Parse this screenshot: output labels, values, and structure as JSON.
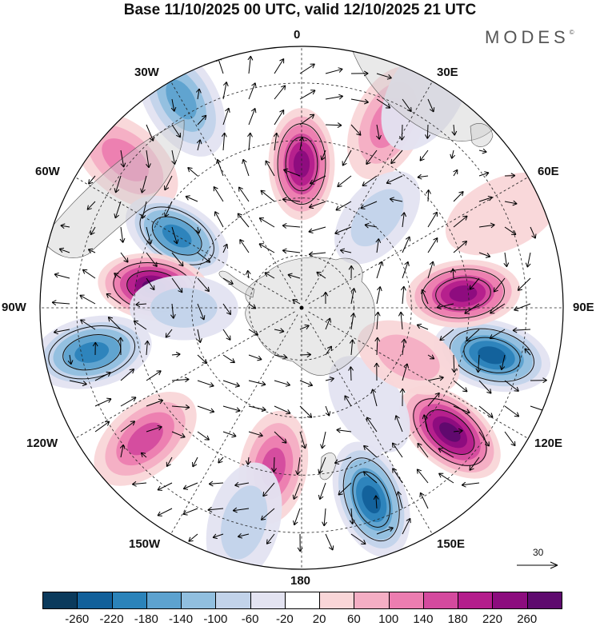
{
  "title": "Base 11/10/2025 00 UTC, valid 12/10/2025 21 UTC",
  "brand": "MODES",
  "brand_mark": "©",
  "longitude_labels": [
    "0",
    "30E",
    "60E",
    "90E",
    "120E",
    "150E",
    "180",
    "150W",
    "120W",
    "90W",
    "60W",
    "30W"
  ],
  "colorbar": {
    "ticks": [
      "-260",
      "-220",
      "-180",
      "-140",
      "-100",
      "-60",
      "-20",
      "20",
      "60",
      "100",
      "140",
      "180",
      "220",
      "260"
    ],
    "colors": [
      "#0b3a5c",
      "#12609a",
      "#2b83ba",
      "#5da2cf",
      "#91bfdf",
      "#c2d3ea",
      "#e3e3f1",
      "#ffffff",
      "#f9d6d8",
      "#f4aec4",
      "#ec7db0",
      "#d44a9e",
      "#b41d8c",
      "#8c0c7e",
      "#5e0a6e"
    ]
  },
  "wind_reference": {
    "value": "30",
    "icon": "reference-arrow-icon"
  },
  "map_data": {
    "projection": "south-polar-stereographic",
    "anomalies": [
      {
        "lon": 0,
        "r": 0.55,
        "value": 230
      },
      {
        "lon": 25,
        "r": 0.78,
        "value": 120
      },
      {
        "lon": 40,
        "r": 0.45,
        "value": -60
      },
      {
        "lon": 30,
        "r": 0.95,
        "value": -30
      },
      {
        "lon": -30,
        "r": 0.92,
        "value": -140
      },
      {
        "lon": -50,
        "r": 0.88,
        "value": 100
      },
      {
        "lon": -60,
        "r": 0.55,
        "value": -200
      },
      {
        "lon": -82,
        "r": 0.57,
        "value": 260
      },
      {
        "lon": -90,
        "r": 0.45,
        "value": -80
      },
      {
        "lon": -102,
        "r": 0.82,
        "value": -180
      },
      {
        "lon": -130,
        "r": 0.78,
        "value": 150
      },
      {
        "lon": -170,
        "r": 0.62,
        "value": 150
      },
      {
        "lon": -165,
        "r": 0.85,
        "value": -60
      },
      {
        "lon": 160,
        "r": 0.78,
        "value": -220
      },
      {
        "lon": 130,
        "r": 0.74,
        "value": 280
      },
      {
        "lon": 104,
        "r": 0.75,
        "value": -220
      },
      {
        "lon": 85,
        "r": 0.62,
        "value": 230
      },
      {
        "lon": 65,
        "r": 0.85,
        "value": 40
      },
      {
        "lon": 145,
        "r": 0.45,
        "value": -40
      },
      {
        "lon": 115,
        "r": 0.45,
        "value": 60
      }
    ]
  }
}
